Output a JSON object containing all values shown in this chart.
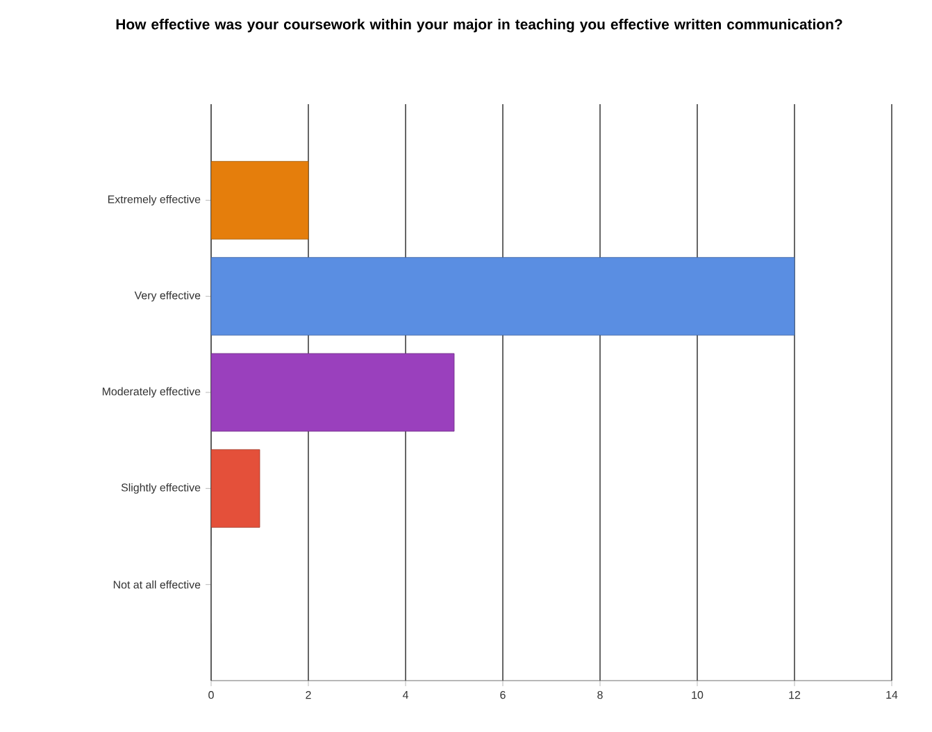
{
  "chart_data": {
    "type": "bar",
    "orientation": "horizontal",
    "title": "How effective was your coursework within your major in teaching you effective written communication?",
    "categories": [
      "Extremely effective",
      "Very effective",
      "Moderately effective",
      "Slightly effective",
      "Not at all effective"
    ],
    "values": [
      2,
      12,
      5,
      1,
      0
    ],
    "colors": [
      "#e57e0c",
      "#5a8ee2",
      "#9a40bd",
      "#e4503a",
      "#999999"
    ],
    "xlim": [
      0,
      14
    ],
    "xticks": [
      0,
      2,
      4,
      6,
      8,
      10,
      12,
      14
    ],
    "grid": "x"
  }
}
